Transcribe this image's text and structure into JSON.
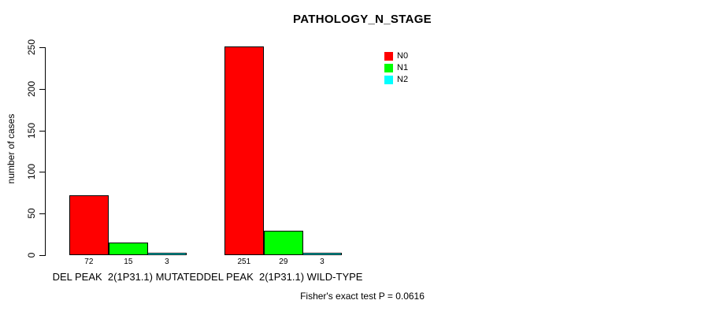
{
  "chart_data": {
    "type": "bar",
    "title": "PATHOLOGY_N_STAGE",
    "xlabel": "",
    "ylabel": "number of cases",
    "categories": [
      "DEL PEAK  2(1P31.1) MUTATED",
      "DEL PEAK  2(1P31.1) WILD-TYPE"
    ],
    "series": [
      {
        "name": "N0",
        "color": "#FF0000",
        "values": [
          72,
          251
        ]
      },
      {
        "name": "N1",
        "color": "#00FF00",
        "values": [
          15,
          29
        ]
      },
      {
        "name": "N2",
        "color": "#00FFFF",
        "values": [
          3,
          3
        ]
      }
    ],
    "yticks": [
      0,
      50,
      100,
      150,
      200,
      250
    ],
    "ylim": [
      0,
      250
    ],
    "grid": false,
    "legend_position": "top-right",
    "bar_value_labels_shown": true,
    "annotation": "Fisher's exact test P = 0.0616"
  }
}
